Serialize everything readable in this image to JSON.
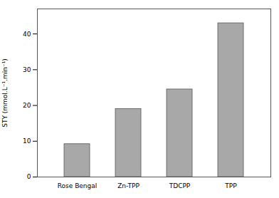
{
  "chart_data": {
    "type": "bar",
    "categories": [
      "Rose Bengal",
      "Zn-TPP",
      "TDCPP",
      "TPP"
    ],
    "values": [
      9.2,
      19.0,
      24.5,
      43.0
    ],
    "color": "#a8a8a8",
    "ylabel": "STY (mmol.L⁻¹.min⁻¹)",
    "ylim": [
      0,
      47
    ],
    "yticks": [
      0,
      10,
      20,
      30,
      40
    ],
    "grid": false
  }
}
